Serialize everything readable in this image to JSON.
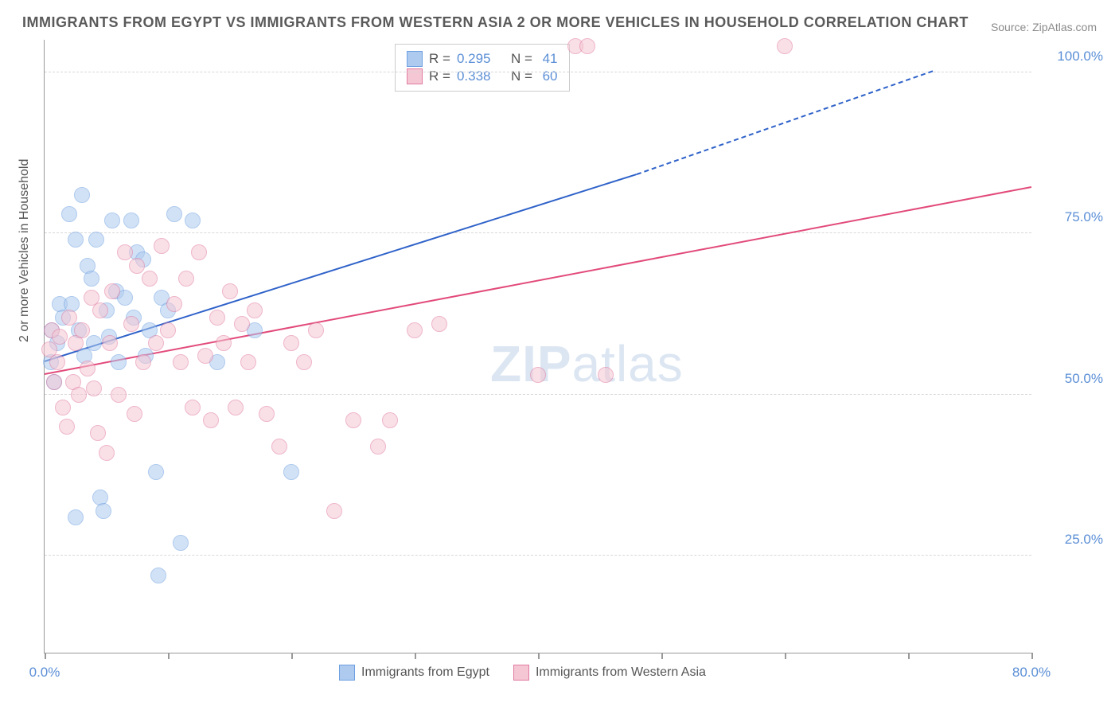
{
  "title": "IMMIGRANTS FROM EGYPT VS IMMIGRANTS FROM WESTERN ASIA 2 OR MORE VEHICLES IN HOUSEHOLD CORRELATION CHART",
  "source_label": "Source:",
  "source_name": "ZipAtlas.com",
  "watermark": "ZIPatlas",
  "yaxis_label": "2 or more Vehicles in Household",
  "chart": {
    "type": "scatter",
    "xlim": [
      0,
      80
    ],
    "ylim": [
      10,
      105
    ],
    "y_ticks": [
      25.0,
      50.0,
      75.0,
      100.0
    ],
    "y_tick_labels": [
      "25.0%",
      "50.0%",
      "75.0%",
      "100.0%"
    ],
    "x_ticks": [
      0,
      10,
      20,
      30,
      40,
      50,
      60,
      70,
      80
    ],
    "x_tick_labels": [
      "0.0%",
      "",
      "",
      "",
      "",
      "",
      "",
      "",
      "80.0%"
    ],
    "background_color": "#ffffff",
    "gridline_color": "#d8d8d8",
    "axis_color": "#999999",
    "label_color": "#5b8fd6",
    "point_radius": 9,
    "point_opacity": 0.55,
    "series": [
      {
        "name": "Immigrants from Egypt",
        "color_fill": "#aecbef",
        "color_stroke": "#6d9fe0",
        "R": "0.295",
        "N": "41",
        "trend": {
          "x1": 0,
          "y1": 55,
          "x2": 48,
          "y2": 84,
          "x2_dash": 72,
          "y2_dash": 100,
          "color": "#2f62c9"
        },
        "points": [
          [
            0.5,
            55
          ],
          [
            0.6,
            60
          ],
          [
            0.8,
            52
          ],
          [
            1,
            58
          ],
          [
            1.2,
            64
          ],
          [
            1.5,
            62
          ],
          [
            2,
            78
          ],
          [
            2.2,
            64
          ],
          [
            2.5,
            74
          ],
          [
            2.8,
            60
          ],
          [
            3,
            81
          ],
          [
            3.2,
            56
          ],
          [
            3.5,
            70
          ],
          [
            4,
            58
          ],
          [
            4.2,
            74
          ],
          [
            4.5,
            34
          ],
          [
            4.8,
            32
          ],
          [
            5,
            63
          ],
          [
            5.2,
            59
          ],
          [
            5.5,
            77
          ],
          [
            5.8,
            66
          ],
          [
            6,
            55
          ],
          [
            6.5,
            65
          ],
          [
            7,
            77
          ],
          [
            7.2,
            62
          ],
          [
            7.5,
            72
          ],
          [
            8,
            71
          ],
          [
            8.2,
            56
          ],
          [
            8.5,
            60
          ],
          [
            9,
            38
          ],
          [
            9.2,
            22
          ],
          [
            9.5,
            65
          ],
          [
            10,
            63
          ],
          [
            10.5,
            78
          ],
          [
            11,
            27
          ],
          [
            12,
            77
          ],
          [
            14,
            55
          ],
          [
            17,
            60
          ],
          [
            20,
            38
          ],
          [
            2.5,
            31
          ],
          [
            3.8,
            68
          ]
        ]
      },
      {
        "name": "Immigrants from Western Asia",
        "color_fill": "#f5c6d3",
        "color_stroke": "#e17ba0",
        "R": "0.338",
        "N": "60",
        "trend": {
          "x1": 0,
          "y1": 53,
          "x2": 80,
          "y2": 82,
          "color": "#e24a7a"
        },
        "points": [
          [
            0.4,
            57
          ],
          [
            0.6,
            60
          ],
          [
            0.8,
            52
          ],
          [
            1,
            55
          ],
          [
            1.2,
            59
          ],
          [
            1.5,
            48
          ],
          [
            1.8,
            45
          ],
          [
            2,
            62
          ],
          [
            2.3,
            52
          ],
          [
            2.5,
            58
          ],
          [
            2.8,
            50
          ],
          [
            3,
            60
          ],
          [
            3.5,
            54
          ],
          [
            3.8,
            65
          ],
          [
            4,
            51
          ],
          [
            4.3,
            44
          ],
          [
            4.5,
            63
          ],
          [
            5,
            41
          ],
          [
            5.3,
            58
          ],
          [
            5.5,
            66
          ],
          [
            6,
            50
          ],
          [
            6.5,
            72
          ],
          [
            7,
            61
          ],
          [
            7.3,
            47
          ],
          [
            7.5,
            70
          ],
          [
            8,
            55
          ],
          [
            8.5,
            68
          ],
          [
            9,
            58
          ],
          [
            9.5,
            73
          ],
          [
            10,
            60
          ],
          [
            10.5,
            64
          ],
          [
            11,
            55
          ],
          [
            11.5,
            68
          ],
          [
            12,
            48
          ],
          [
            12.5,
            72
          ],
          [
            13,
            56
          ],
          [
            13.5,
            46
          ],
          [
            14,
            62
          ],
          [
            14.5,
            58
          ],
          [
            15,
            66
          ],
          [
            15.5,
            48
          ],
          [
            16,
            61
          ],
          [
            16.5,
            55
          ],
          [
            17,
            63
          ],
          [
            18,
            47
          ],
          [
            19,
            42
          ],
          [
            20,
            58
          ],
          [
            21,
            55
          ],
          [
            22,
            60
          ],
          [
            23.5,
            32
          ],
          [
            25,
            46
          ],
          [
            27,
            42
          ],
          [
            28,
            46
          ],
          [
            30,
            60
          ],
          [
            32,
            61
          ],
          [
            40,
            53
          ],
          [
            43,
            104
          ],
          [
            44,
            104
          ],
          [
            60,
            104
          ],
          [
            45.5,
            53
          ]
        ]
      }
    ]
  },
  "legend_top": {
    "R_label": "R =",
    "N_label": "N ="
  },
  "legend_bottom": [
    "Immigrants from Egypt",
    "Immigrants from Western Asia"
  ]
}
